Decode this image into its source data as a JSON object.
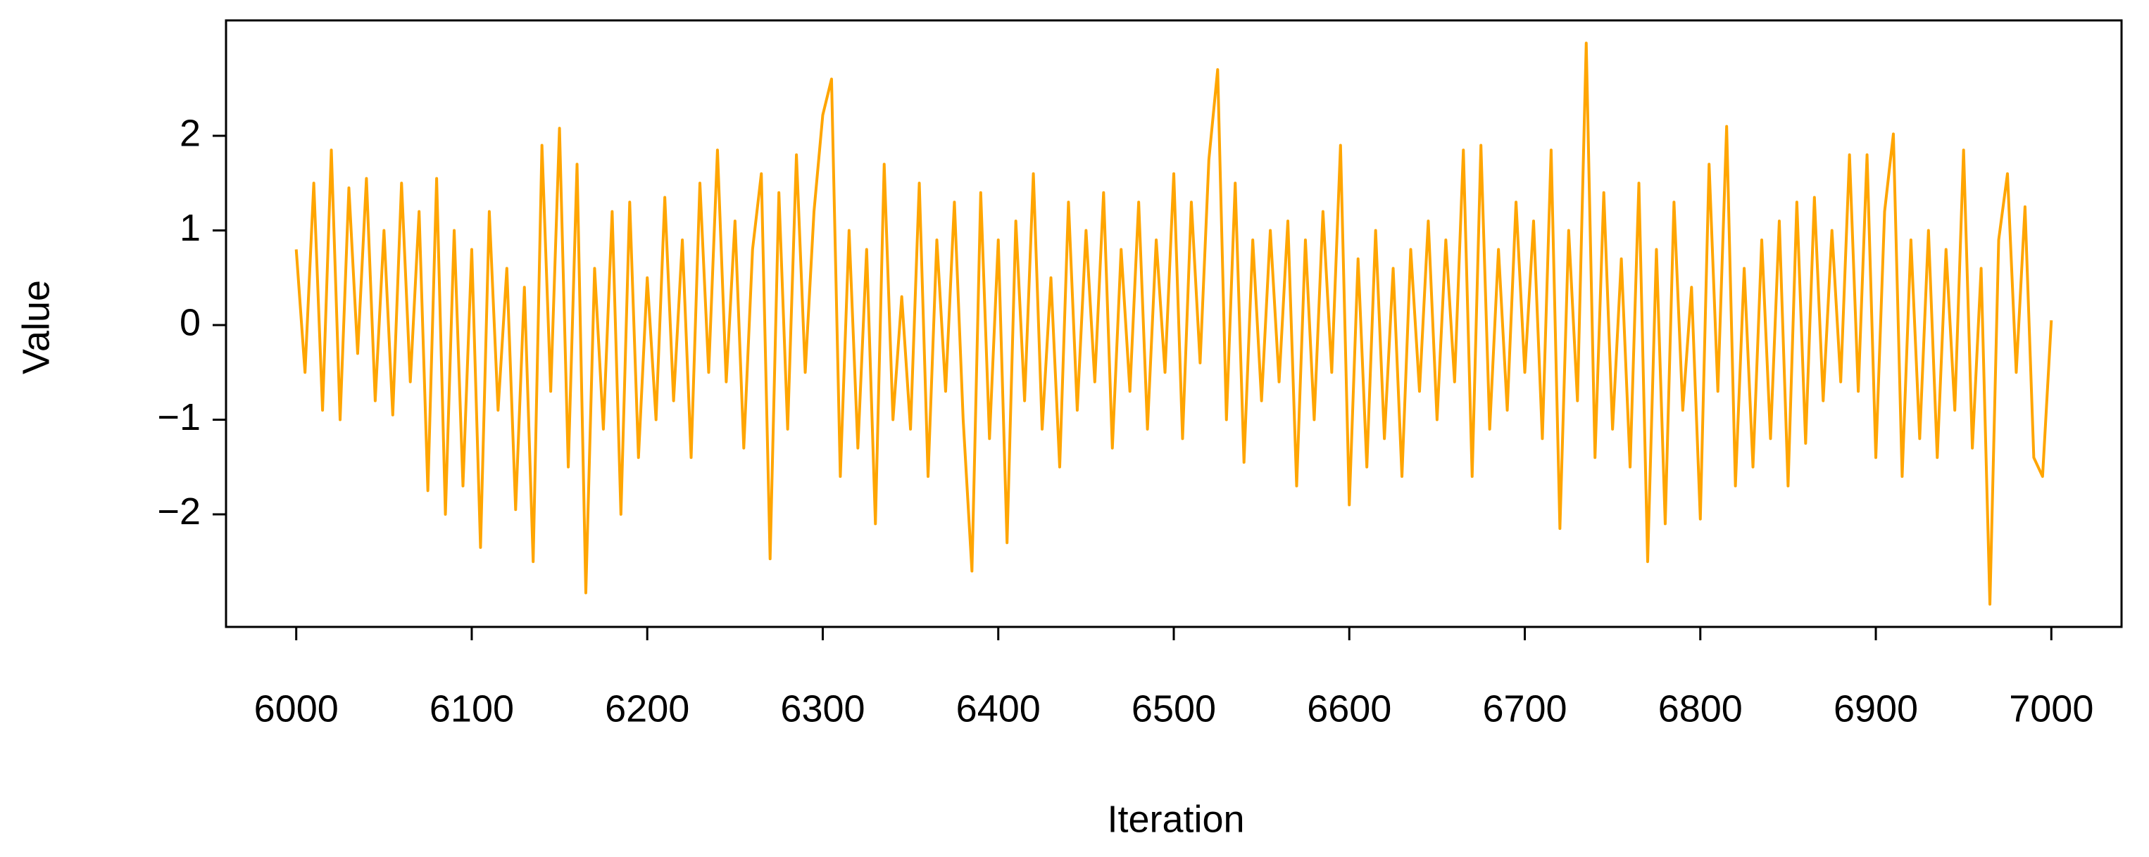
{
  "chart_data": {
    "type": "line",
    "xlabel": "Iteration",
    "ylabel": "Value",
    "color": "#ffa500",
    "xlim": [
      5960,
      7040
    ],
    "ylim": [
      -3.19,
      3.22
    ],
    "xticks": [
      6000,
      6100,
      6200,
      6300,
      6400,
      6500,
      6600,
      6700,
      6800,
      6900,
      7000
    ],
    "yticks": [
      {
        "value": -2,
        "label": "−2"
      },
      {
        "value": -1,
        "label": "−1"
      },
      0,
      1,
      2
    ],
    "x": [
      6000,
      6005,
      6010,
      6015,
      6020,
      6025,
      6030,
      6035,
      6040,
      6045,
      6050,
      6055,
      6060,
      6065,
      6070,
      6075,
      6080,
      6085,
      6090,
      6095,
      6100,
      6105,
      6110,
      6115,
      6120,
      6125,
      6130,
      6135,
      6140,
      6145,
      6150,
      6155,
      6160,
      6165,
      6170,
      6175,
      6180,
      6185,
      6190,
      6195,
      6200,
      6205,
      6210,
      6215,
      6220,
      6225,
      6230,
      6235,
      6240,
      6245,
      6250,
      6255,
      6260,
      6265,
      6270,
      6275,
      6280,
      6285,
      6290,
      6295,
      6300,
      6305,
      6310,
      6315,
      6320,
      6325,
      6330,
      6335,
      6340,
      6345,
      6350,
      6355,
      6360,
      6365,
      6370,
      6375,
      6380,
      6385,
      6390,
      6395,
      6400,
      6405,
      6410,
      6415,
      6420,
      6425,
      6430,
      6435,
      6440,
      6445,
      6450,
      6455,
      6460,
      6465,
      6470,
      6475,
      6480,
      6485,
      6490,
      6495,
      6500,
      6505,
      6510,
      6515,
      6520,
      6525,
      6530,
      6535,
      6540,
      6545,
      6550,
      6555,
      6560,
      6565,
      6570,
      6575,
      6580,
      6585,
      6590,
      6595,
      6600,
      6605,
      6610,
      6615,
      6620,
      6625,
      6630,
      6635,
      6640,
      6645,
      6650,
      6655,
      6660,
      6665,
      6670,
      6675,
      6680,
      6685,
      6690,
      6695,
      6700,
      6705,
      6710,
      6715,
      6720,
      6725,
      6730,
      6735,
      6740,
      6745,
      6750,
      6755,
      6760,
      6765,
      6770,
      6775,
      6780,
      6785,
      6790,
      6795,
      6800,
      6805,
      6810,
      6815,
      6820,
      6825,
      6830,
      6835,
      6840,
      6845,
      6850,
      6855,
      6860,
      6865,
      6870,
      6875,
      6880,
      6885,
      6890,
      6895,
      6900,
      6905,
      6910,
      6915,
      6920,
      6925,
      6930,
      6935,
      6940,
      6945,
      6950,
      6955,
      6960,
      6965,
      6970,
      6975,
      6980,
      6985,
      6990,
      6995,
      7000
    ],
    "values": [
      0.8,
      -0.5,
      1.5,
      -0.9,
      1.85,
      -1.0,
      1.45,
      -0.3,
      1.55,
      -0.8,
      1.0,
      -0.95,
      1.5,
      -0.6,
      1.2,
      -1.75,
      1.55,
      -2.0,
      1.0,
      -1.7,
      0.8,
      -2.35,
      1.2,
      -0.9,
      0.6,
      -1.95,
      0.4,
      -2.5,
      1.9,
      -0.7,
      2.08,
      -1.5,
      1.7,
      -2.83,
      0.6,
      -1.1,
      1.2,
      -2.0,
      1.3,
      -1.4,
      0.5,
      -1.0,
      1.35,
      -0.8,
      0.9,
      -1.4,
      1.5,
      -0.5,
      1.85,
      -0.6,
      1.1,
      -1.3,
      0.8,
      1.6,
      -2.47,
      1.4,
      -1.1,
      1.8,
      -0.5,
      1.2,
      2.22,
      2.6,
      -1.6,
      1.0,
      -1.3,
      0.8,
      -2.1,
      1.7,
      -1.0,
      0.3,
      -1.1,
      1.5,
      -1.6,
      0.9,
      -0.7,
      1.3,
      -1.0,
      -2.6,
      1.4,
      -1.2,
      0.9,
      -2.3,
      1.1,
      -0.8,
      1.6,
      -1.1,
      0.5,
      -1.5,
      1.3,
      -0.9,
      1.0,
      -0.6,
      1.4,
      -1.3,
      0.8,
      -0.7,
      1.3,
      -1.1,
      0.9,
      -0.5,
      1.6,
      -1.2,
      1.3,
      -0.4,
      1.75,
      2.7,
      -1.0,
      1.5,
      -1.45,
      0.9,
      -0.8,
      1.0,
      -0.6,
      1.1,
      -1.7,
      0.9,
      -1.0,
      1.2,
      -0.5,
      1.9,
      -1.9,
      0.7,
      -1.5,
      1.0,
      -1.2,
      0.6,
      -1.6,
      0.8,
      -0.7,
      1.1,
      -1.0,
      0.9,
      -0.6,
      1.85,
      -1.6,
      1.9,
      -1.1,
      0.8,
      -0.9,
      1.3,
      -0.5,
      1.1,
      -1.2,
      1.85,
      -2.15,
      1.0,
      -0.8,
      2.98,
      -1.4,
      1.4,
      -1.1,
      0.7,
      -1.5,
      1.5,
      -2.5,
      0.8,
      -2.1,
      1.3,
      -0.9,
      0.4,
      -2.05,
      1.7,
      -0.7,
      2.1,
      -1.7,
      0.6,
      -1.5,
      0.9,
      -1.2,
      1.1,
      -1.7,
      1.3,
      -1.25,
      1.35,
      -0.8,
      1.0,
      -0.6,
      1.8,
      -0.7,
      1.8,
      -1.4,
      1.2,
      2.02,
      -1.6,
      0.9,
      -1.2,
      1.0,
      -1.4,
      0.8,
      -0.9,
      1.85,
      -1.3,
      0.6,
      -2.95,
      0.9,
      1.6,
      -0.5,
      1.25,
      -1.4,
      -1.6,
      0.05
    ]
  }
}
